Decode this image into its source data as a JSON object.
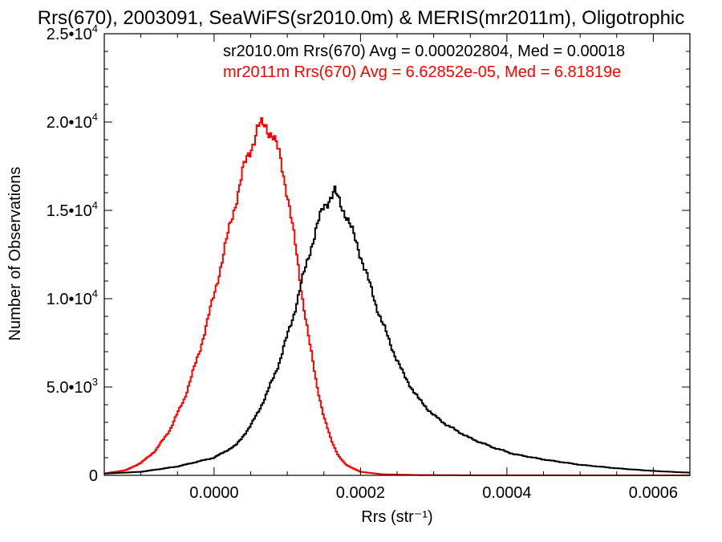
{
  "chart_data": {
    "type": "histogram",
    "title": "Rrs(670), 2003091, SeaWiFS(sr2010.0m) & MERIS(mr2011m), Oligotrophic",
    "xlabel": "Rrs (str⁻¹)",
    "ylabel": "Number of Observations",
    "xlim": [
      -0.00015,
      0.00065
    ],
    "ylim": [
      0,
      25000
    ],
    "grid": false,
    "x_ticks": [
      0.0,
      0.0002,
      0.0004,
      0.0006
    ],
    "x_tick_labels": [
      "0.0000",
      "0.0002",
      "0.0004",
      "0.0006"
    ],
    "y_ticks": [
      0,
      5000,
      10000,
      15000,
      20000,
      25000
    ],
    "y_tick_labels": [
      {
        "mantissa": "0",
        "exp": ""
      },
      {
        "mantissa": "5.0•10",
        "exp": "3"
      },
      {
        "mantissa": "1.0•10",
        "exp": "4"
      },
      {
        "mantissa": "1.5•10",
        "exp": "4"
      },
      {
        "mantissa": "2.0•10",
        "exp": "4"
      },
      {
        "mantissa": "2.5•10",
        "exp": "4"
      }
    ],
    "series": [
      {
        "name": "sr2010.0m",
        "color": "#000000",
        "stats_label": "sr2010.0m Rrs(670) Avg = 0.000202804, Med = 0.00018",
        "points": [
          [
            -0.00015,
            100
          ],
          [
            -0.0001,
            200
          ],
          [
            -5e-05,
            500
          ],
          [
            0.0,
            1000
          ],
          [
            3e-05,
            1700
          ],
          [
            5e-05,
            2800
          ],
          [
            7e-05,
            4400
          ],
          [
            9e-05,
            6500
          ],
          [
            0.00011,
            9300
          ],
          [
            0.00013,
            12600
          ],
          [
            0.00015,
            15300
          ],
          [
            0.000165,
            16000
          ],
          [
            0.00018,
            14800
          ],
          [
            0.0002,
            12500
          ],
          [
            0.00022,
            9800
          ],
          [
            0.00024,
            7500
          ],
          [
            0.00026,
            5600
          ],
          [
            0.00028,
            4300
          ],
          [
            0.0003,
            3400
          ],
          [
            0.00032,
            2800
          ],
          [
            0.00035,
            2100
          ],
          [
            0.00038,
            1600
          ],
          [
            0.00041,
            1200
          ],
          [
            0.00045,
            900
          ],
          [
            0.0005,
            600
          ],
          [
            0.00055,
            400
          ],
          [
            0.0006,
            250
          ],
          [
            0.00065,
            150
          ]
        ]
      },
      {
        "name": "mr2011m",
        "color": "#ff0000",
        "stats_label": "mr2011m Rrs(670) Avg = 6.62852e-05, Med = 6.81819e",
        "points": [
          [
            -0.00015,
            100
          ],
          [
            -0.00012,
            300
          ],
          [
            -0.0001,
            700
          ],
          [
            -8e-05,
            1400
          ],
          [
            -6e-05,
            2600
          ],
          [
            -4e-05,
            4400
          ],
          [
            -2e-05,
            7000
          ],
          [
            0.0,
            10200
          ],
          [
            2e-05,
            13800
          ],
          [
            4e-05,
            17300
          ],
          [
            6e-05,
            19700
          ],
          [
            7e-05,
            19800
          ],
          [
            8e-05,
            19300
          ],
          [
            9e-05,
            18000
          ],
          [
            0.0001,
            16000
          ],
          [
            0.00011,
            13300
          ],
          [
            0.00012,
            10300
          ],
          [
            0.00013,
            7600
          ],
          [
            0.00014,
            5200
          ],
          [
            0.00015,
            3300
          ],
          [
            0.00016,
            2000
          ],
          [
            0.00017,
            1100
          ],
          [
            0.00018,
            600
          ],
          [
            0.0002,
            200
          ],
          [
            0.00023,
            60
          ],
          [
            0.00028,
            20
          ],
          [
            0.00035,
            5
          ],
          [
            0.00065,
            0
          ]
        ]
      }
    ]
  }
}
